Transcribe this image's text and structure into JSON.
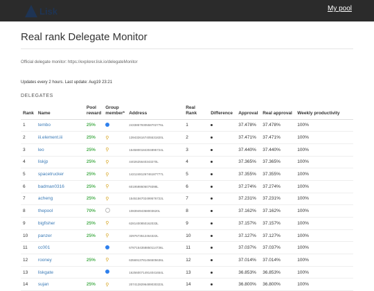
{
  "header": {
    "logo_text": "Lisk",
    "my_pool_label": "My pool"
  },
  "page": {
    "title": "Real rank Delegate Monitor",
    "official_text": "Official delegate monitor: https://explorer.lisk.io/delegateMonitor",
    "updates_text": "Updates every 2 hours. Last update: Aug19 23:21",
    "section_label": "DELEGATES"
  },
  "table": {
    "headers": [
      "Rank",
      "Name",
      "Pool reward",
      "Group member*",
      "Address",
      "Real Rank",
      "Difference",
      "Approval",
      "Real approval",
      "Weekly productivity"
    ],
    "rows": [
      {
        "rank": "1",
        "name": "tembo",
        "reward": "25%",
        "member": "blue",
        "address": "2433857930558702776L",
        "real_rank": "1",
        "approval": "37.478%",
        "real_approval": "37.478%",
        "productivity": "100%"
      },
      {
        "rank": "2",
        "name": "iii.element.iii",
        "reward": "25%",
        "member": "pin",
        "address": "1394326167405531820L",
        "real_rank": "2",
        "approval": "37.471%",
        "real_approval": "37.471%",
        "productivity": "100%"
      },
      {
        "rank": "3",
        "name": "leo",
        "reward": "25%",
        "member": "pin",
        "address": "1545800184304895724L",
        "real_rank": "3",
        "approval": "37.440%",
        "real_approval": "37.440%",
        "productivity": "100%"
      },
      {
        "rank": "4",
        "name": "liskjp",
        "reward": "25%",
        "member": "pin",
        "address": "4402625640343270L",
        "real_rank": "4",
        "approval": "37.365%",
        "real_approval": "37.365%",
        "productivity": "100%"
      },
      {
        "rank": "5",
        "name": "spacetrucker",
        "reward": "25%",
        "member": "pin",
        "address": "1421248126746187777L",
        "real_rank": "5",
        "approval": "37.355%",
        "real_approval": "37.355%",
        "productivity": "100%"
      },
      {
        "rank": "6",
        "name": "badman0316",
        "reward": "25%",
        "member": "pin",
        "address": "6019598606079398L",
        "real_rank": "6",
        "approval": "37.274%",
        "real_approval": "37.274%",
        "productivity": "100%"
      },
      {
        "rank": "7",
        "name": "acheng",
        "reward": "25%",
        "member": "pin",
        "address": "1545156702499576722L",
        "real_rank": "7",
        "approval": "37.231%",
        "real_approval": "37.231%",
        "productivity": "100%"
      },
      {
        "rank": "8",
        "name": "thepool",
        "reward": "70%",
        "member": "empty",
        "address": "10839494368003620L",
        "real_rank": "8",
        "approval": "37.162%",
        "real_approval": "37.162%",
        "productivity": "100%"
      },
      {
        "rank": "9",
        "name": "bigfisher",
        "reward": "25%",
        "member": "pin",
        "address": "6281400850162033L",
        "real_rank": "9",
        "approval": "37.157%",
        "real_approval": "37.157%",
        "productivity": "100%"
      },
      {
        "rank": "10",
        "name": "panzer",
        "reward": "25%",
        "member": "pin",
        "address": "3297673512464322L",
        "real_rank": "10",
        "approval": "37.127%",
        "real_approval": "37.127%",
        "productivity": "100%"
      },
      {
        "rank": "11",
        "name": "cc001",
        "reward": "",
        "member": "blue",
        "address": "6787154358850114736L",
        "real_rank": "11",
        "approval": "37.037%",
        "real_approval": "37.037%",
        "productivity": "100%"
      },
      {
        "rank": "12",
        "name": "rooney",
        "reward": "25%",
        "member": "pin",
        "address": "6356913781456505636L",
        "real_rank": "12",
        "approval": "37.014%",
        "real_approval": "37.014%",
        "productivity": "100%"
      },
      {
        "rank": "13",
        "name": "liskgate",
        "reward": "",
        "member": "blue",
        "address": "1625600714914041654L",
        "real_rank": "13",
        "approval": "36.853%",
        "real_approval": "36.853%",
        "productivity": "100%"
      },
      {
        "rank": "14",
        "name": "sujan",
        "reward": "25%",
        "member": "pin",
        "address": "2074128296489030323L",
        "real_rank": "14",
        "approval": "36.800%",
        "real_approval": "36.800%",
        "productivity": "100%"
      }
    ]
  }
}
